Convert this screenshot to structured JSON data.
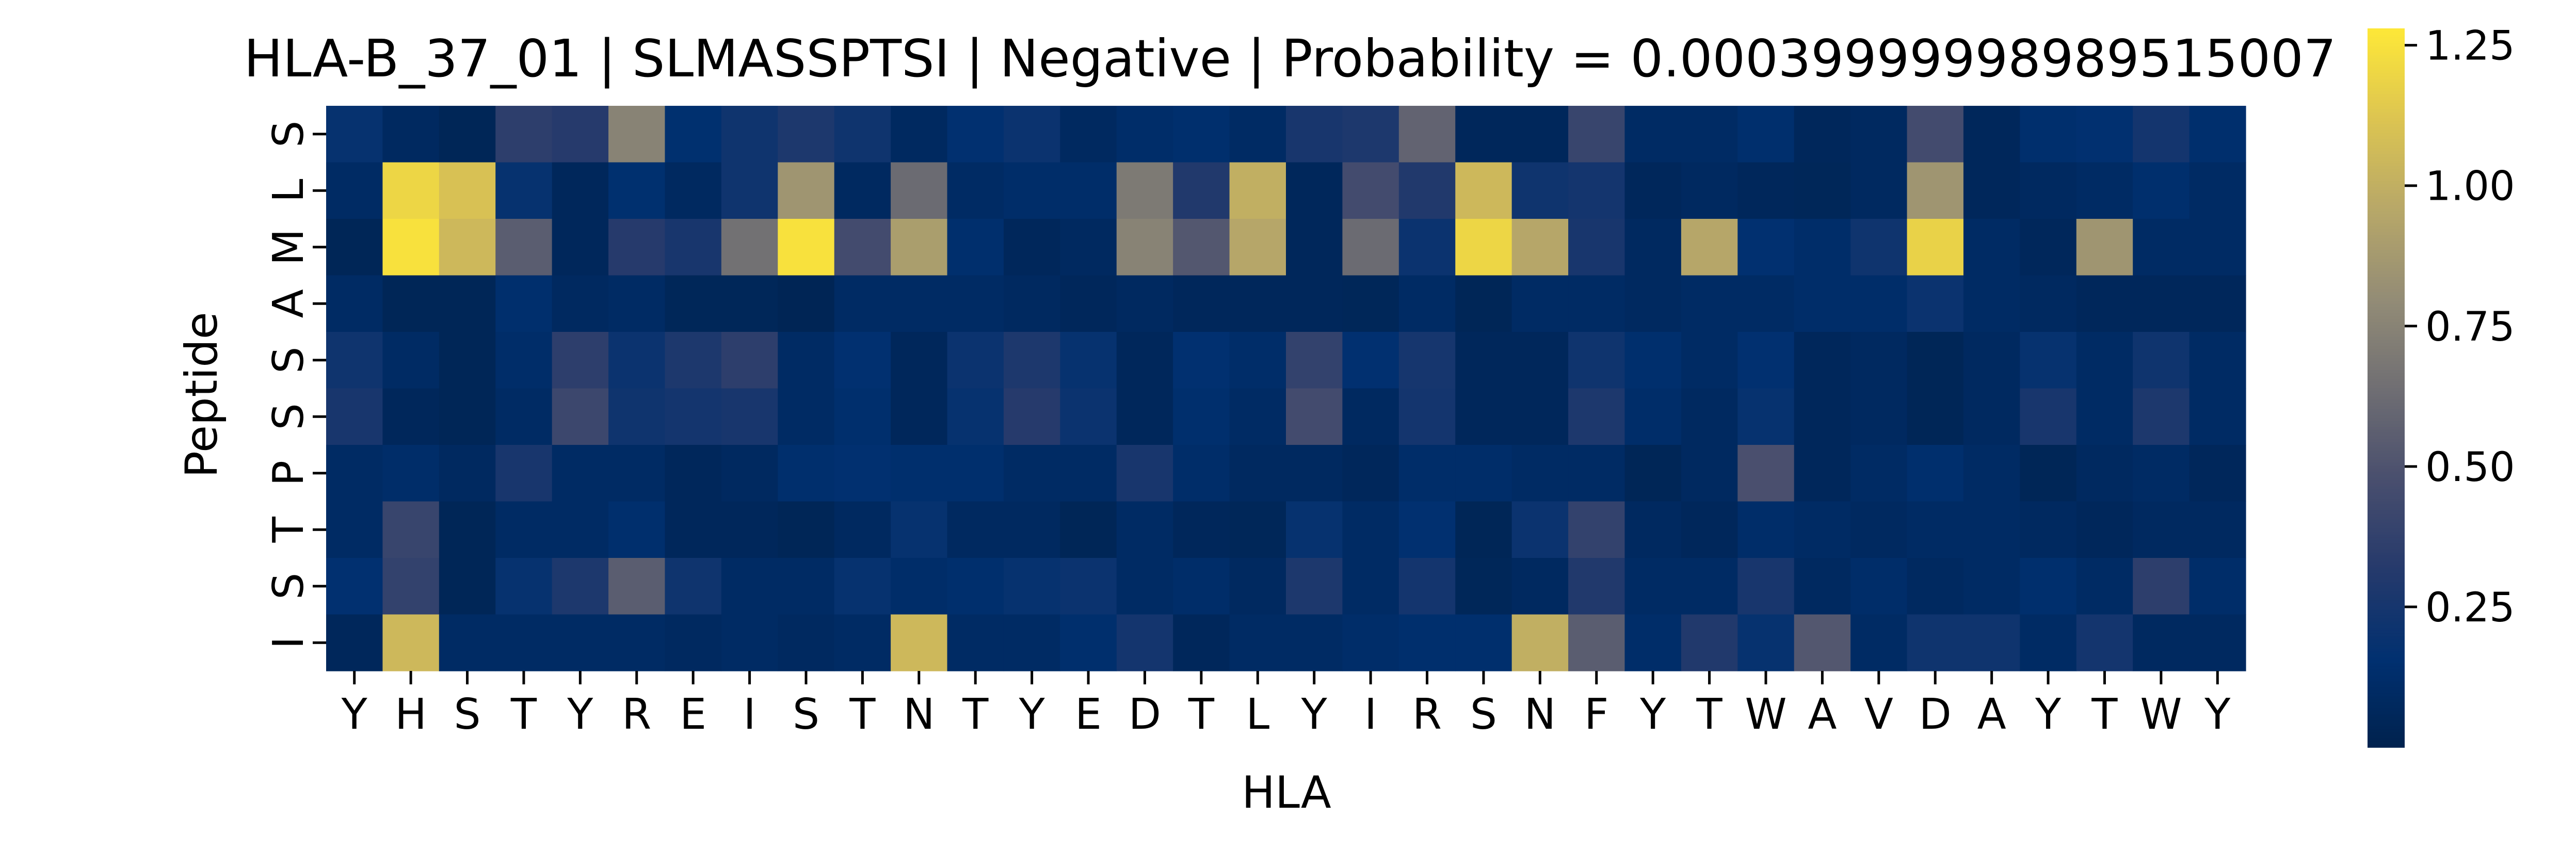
{
  "chart_data": {
    "type": "heatmap",
    "title": "HLA-B_37_01 | SLMASSPTSI | Negative | Probability = 0.00039999998989515007",
    "xlabel": "HLA",
    "ylabel": "Peptide",
    "x_categories": [
      "Y",
      "H",
      "S",
      "T",
      "Y",
      "R",
      "E",
      "I",
      "S",
      "T",
      "N",
      "T",
      "Y",
      "E",
      "D",
      "T",
      "L",
      "Y",
      "I",
      "R",
      "S",
      "N",
      "F",
      "Y",
      "T",
      "W",
      "A",
      "V",
      "D",
      "A",
      "Y",
      "T",
      "W",
      "Y"
    ],
    "y_categories": [
      "S",
      "L",
      "M",
      "A",
      "S",
      "S",
      "P",
      "T",
      "S",
      "I"
    ],
    "values": [
      [
        0.18,
        0.08,
        0.04,
        0.35,
        0.32,
        0.75,
        0.15,
        0.22,
        0.28,
        0.22,
        0.08,
        0.16,
        0.2,
        0.08,
        0.12,
        0.14,
        0.1,
        0.26,
        0.28,
        0.58,
        0.06,
        0.06,
        0.4,
        0.1,
        0.1,
        0.14,
        0.06,
        0.08,
        0.45,
        0.06,
        0.14,
        0.16,
        0.24,
        0.14
      ],
      [
        0.1,
        1.2,
        1.1,
        0.18,
        0.06,
        0.15,
        0.08,
        0.22,
        0.85,
        0.08,
        0.62,
        0.1,
        0.12,
        0.12,
        0.7,
        0.3,
        1.0,
        0.06,
        0.45,
        0.3,
        1.05,
        0.22,
        0.24,
        0.06,
        0.08,
        0.06,
        0.05,
        0.08,
        0.85,
        0.06,
        0.08,
        0.1,
        0.14,
        0.1
      ],
      [
        0.04,
        1.25,
        1.05,
        0.55,
        0.06,
        0.32,
        0.26,
        0.65,
        1.25,
        0.45,
        0.9,
        0.14,
        0.06,
        0.08,
        0.75,
        0.52,
        0.95,
        0.06,
        0.62,
        0.2,
        1.2,
        0.95,
        0.26,
        0.08,
        0.95,
        0.16,
        0.12,
        0.22,
        1.18,
        0.1,
        0.06,
        0.85,
        0.1,
        0.1
      ],
      [
        0.1,
        0.04,
        0.04,
        0.14,
        0.08,
        0.1,
        0.05,
        0.05,
        0.03,
        0.1,
        0.1,
        0.1,
        0.08,
        0.06,
        0.08,
        0.06,
        0.06,
        0.06,
        0.05,
        0.1,
        0.04,
        0.1,
        0.1,
        0.08,
        0.1,
        0.1,
        0.12,
        0.12,
        0.2,
        0.1,
        0.08,
        0.06,
        0.06,
        0.06
      ],
      [
        0.22,
        0.1,
        0.04,
        0.12,
        0.35,
        0.2,
        0.28,
        0.35,
        0.1,
        0.16,
        0.06,
        0.2,
        0.28,
        0.18,
        0.06,
        0.16,
        0.12,
        0.38,
        0.16,
        0.25,
        0.06,
        0.06,
        0.22,
        0.14,
        0.1,
        0.16,
        0.06,
        0.08,
        0.04,
        0.08,
        0.18,
        0.1,
        0.22,
        0.1
      ],
      [
        0.26,
        0.06,
        0.04,
        0.1,
        0.42,
        0.22,
        0.24,
        0.26,
        0.1,
        0.14,
        0.06,
        0.18,
        0.32,
        0.2,
        0.06,
        0.14,
        0.1,
        0.45,
        0.08,
        0.24,
        0.06,
        0.06,
        0.28,
        0.12,
        0.08,
        0.18,
        0.06,
        0.08,
        0.04,
        0.08,
        0.26,
        0.1,
        0.28,
        0.1
      ],
      [
        0.1,
        0.12,
        0.08,
        0.26,
        0.1,
        0.1,
        0.06,
        0.08,
        0.14,
        0.16,
        0.14,
        0.14,
        0.1,
        0.1,
        0.26,
        0.12,
        0.08,
        0.08,
        0.06,
        0.12,
        0.12,
        0.1,
        0.1,
        0.04,
        0.08,
        0.48,
        0.06,
        0.1,
        0.14,
        0.1,
        0.04,
        0.08,
        0.1,
        0.06
      ],
      [
        0.1,
        0.4,
        0.04,
        0.1,
        0.1,
        0.14,
        0.06,
        0.06,
        0.04,
        0.08,
        0.18,
        0.08,
        0.08,
        0.04,
        0.1,
        0.06,
        0.05,
        0.18,
        0.1,
        0.16,
        0.04,
        0.2,
        0.38,
        0.08,
        0.06,
        0.12,
        0.1,
        0.08,
        0.1,
        0.1,
        0.08,
        0.06,
        0.08,
        0.08
      ],
      [
        0.16,
        0.38,
        0.04,
        0.18,
        0.28,
        0.55,
        0.22,
        0.1,
        0.1,
        0.18,
        0.12,
        0.14,
        0.18,
        0.2,
        0.1,
        0.12,
        0.08,
        0.28,
        0.1,
        0.24,
        0.05,
        0.08,
        0.3,
        0.1,
        0.1,
        0.26,
        0.08,
        0.12,
        0.08,
        0.1,
        0.14,
        0.1,
        0.35,
        0.12
      ],
      [
        0.06,
        1.05,
        0.1,
        0.1,
        0.1,
        0.1,
        0.08,
        0.1,
        0.08,
        0.1,
        1.05,
        0.1,
        0.1,
        0.14,
        0.24,
        0.06,
        0.1,
        0.1,
        0.12,
        0.14,
        0.14,
        1.0,
        0.55,
        0.12,
        0.3,
        0.18,
        0.52,
        0.1,
        0.22,
        0.22,
        0.1,
        0.24,
        0.08,
        0.08
      ]
    ],
    "vmin": 0.0,
    "vmax": 1.28,
    "colormap": "cividis",
    "colorbar": {
      "ticks": [
        0.25,
        0.5,
        0.75,
        1.0,
        1.25
      ],
      "tick_labels": [
        "0.25",
        "0.50",
        "0.75",
        "1.00",
        "1.25"
      ]
    }
  }
}
